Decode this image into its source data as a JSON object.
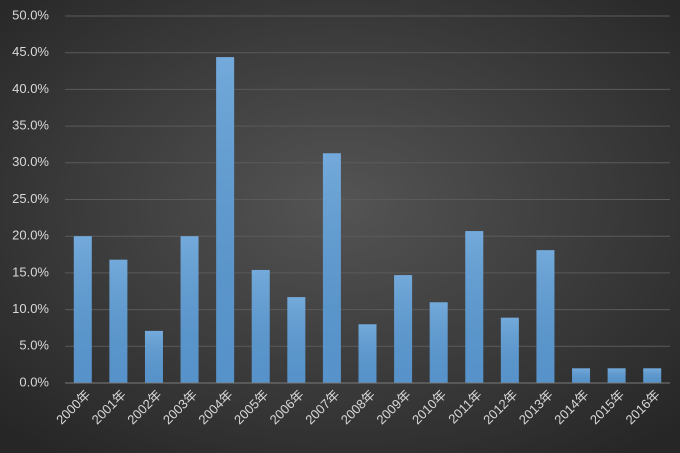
{
  "chart_data": {
    "type": "bar",
    "categories": [
      "2000年",
      "2001年",
      "2002年",
      "2003年",
      "2004年",
      "2005年",
      "2006年",
      "2007年",
      "2008年",
      "2009年",
      "2010年",
      "2011年",
      "2012年",
      "2013年",
      "2014年",
      "2015年",
      "2016年"
    ],
    "values": [
      20.0,
      16.8,
      7.1,
      20.0,
      44.4,
      15.4,
      11.7,
      31.3,
      8.0,
      14.7,
      11.0,
      20.7,
      8.9,
      18.1,
      2.0,
      2.0,
      2.0
    ],
    "color": "#5b9bd5",
    "ylim": [
      0,
      50
    ],
    "yticks": [
      {
        "value": 0,
        "label": "0.0%"
      },
      {
        "value": 5,
        "label": "5.0%"
      },
      {
        "value": 10,
        "label": "10.0%"
      },
      {
        "value": 15,
        "label": "15.0%"
      },
      {
        "value": 20,
        "label": "20.0%"
      },
      {
        "value": 25,
        "label": "25.0%"
      },
      {
        "value": 30,
        "label": "30.0%"
      },
      {
        "value": 35,
        "label": "35.0%"
      },
      {
        "value": 40,
        "label": "40.0%"
      },
      {
        "value": 45,
        "label": "45.0%"
      },
      {
        "value": 50,
        "label": "50.0%"
      }
    ],
    "grid": true
  }
}
